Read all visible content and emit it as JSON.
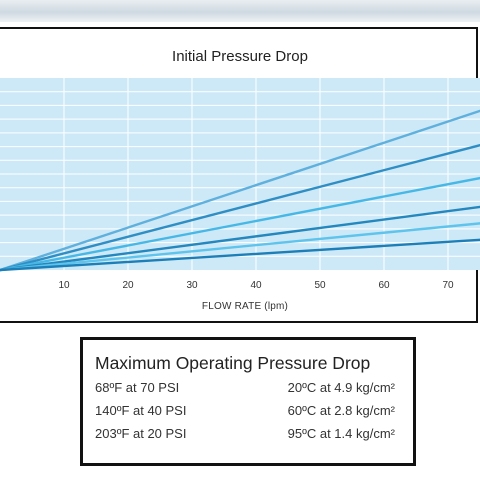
{
  "chart_data": {
    "type": "line",
    "title": "Initial Pressure Drop",
    "xlabel": "FLOW RATE (lpm)",
    "ylabel": "",
    "xlim": [
      0,
      75
    ],
    "ylim": [
      0,
      14
    ],
    "x_ticks": [
      "10",
      "20",
      "30",
      "40",
      "50",
      "60",
      "70"
    ],
    "y_grid_count": 14,
    "grid": true,
    "background": "#cde9f7",
    "grid_color": "#ffffff",
    "series": [
      {
        "color": "#5fb0dd",
        "x": [
          0,
          75
        ],
        "y": [
          0,
          11.6
        ]
      },
      {
        "color": "#2f8fc4",
        "x": [
          0,
          75
        ],
        "y": [
          0,
          9.1
        ]
      },
      {
        "color": "#47b8e6",
        "x": [
          0,
          75
        ],
        "y": [
          0,
          6.7
        ]
      },
      {
        "color": "#2487bd",
        "x": [
          0,
          75
        ],
        "y": [
          0,
          4.6
        ]
      },
      {
        "color": "#5ec4ec",
        "x": [
          0,
          75
        ],
        "y": [
          0,
          3.4
        ]
      },
      {
        "color": "#1d7fb7",
        "x": [
          0,
          75
        ],
        "y": [
          0,
          2.2
        ]
      }
    ]
  },
  "table": {
    "title": "Maximum Operating Pressure Drop",
    "rows": [
      {
        "f": "68ºF at 70 PSI",
        "c": "20ºC at 4.9 kg/cm²"
      },
      {
        "f": "140ºF at 40 PSI",
        "c": "60ºC at 2.8 kg/cm²"
      },
      {
        "f": "203ºF at 20 PSI",
        "c": "95ºC at 1.4 kg/cm²"
      }
    ]
  }
}
